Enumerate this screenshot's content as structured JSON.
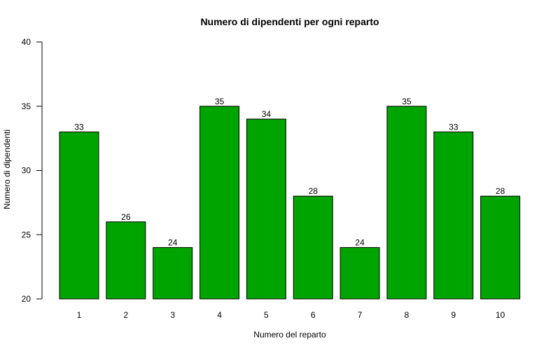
{
  "chart_data": {
    "type": "bar",
    "title": "Numero di dipendenti per ogni reparto",
    "xlabel": "Numero del reparto",
    "ylabel": "Numero di dipendenti",
    "categories": [
      "1",
      "2",
      "3",
      "4",
      "5",
      "6",
      "7",
      "8",
      "9",
      "10"
    ],
    "values": [
      33,
      26,
      24,
      35,
      34,
      28,
      24,
      35,
      33,
      28
    ],
    "data_labels": [
      "33",
      "26",
      "24",
      "35",
      "34",
      "28",
      "24",
      "35",
      "33",
      "28"
    ],
    "ylim": [
      20,
      40
    ],
    "yticks": [
      20,
      25,
      30,
      35,
      40
    ],
    "ytick_labels": [
      "20",
      "25",
      "30",
      "35",
      "40"
    ],
    "grid": false,
    "legend": "none",
    "bar_color": "#00a400"
  }
}
